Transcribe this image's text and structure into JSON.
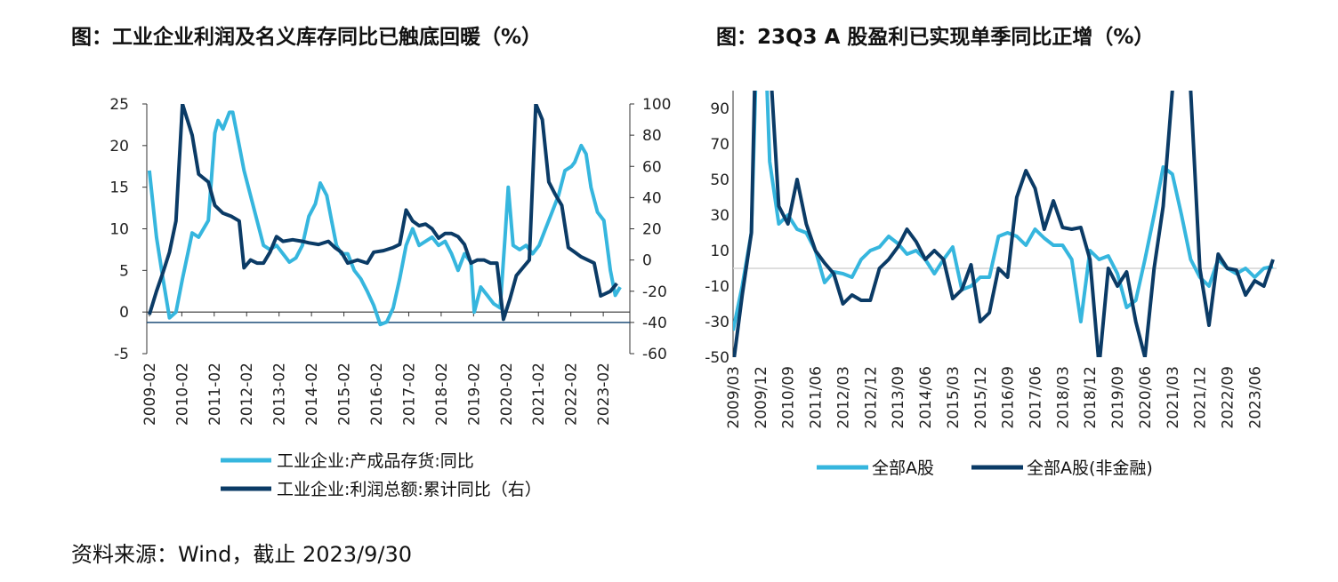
{
  "titles": {
    "left": "图：工业企业利润及名义库存同比已触底回暖（%）",
    "right": "图：23Q3 A 股盈利已实现单季同比正增（%）"
  },
  "source": "资料来源：Wind，截止 2023/9/30",
  "colors": {
    "light": "#36b6de",
    "dark": "#0b3b66",
    "zero": "#d4d4d4",
    "axis": "#333333"
  },
  "chart_data": [
    {
      "type": "line",
      "title": "图：工业企业利润及名义库存同比已触底回暖（%）",
      "x_tick_labels": [
        "2009-02",
        "2010-02",
        "2011-02",
        "2012-02",
        "2013-02",
        "2014-02",
        "2015-02",
        "2016-02",
        "2017-02",
        "2018-02",
        "2019-02",
        "2020-02",
        "2021-02",
        "2022-02",
        "2023-02"
      ],
      "y_left_ticks": [
        "25",
        "20",
        "15",
        "10",
        "5",
        "0",
        "-5"
      ],
      "y_right_ticks": [
        "100",
        "80",
        "60",
        "40",
        "20",
        "0",
        "-20",
        "-40",
        "-60"
      ],
      "ylim_left": [
        -5,
        25
      ],
      "ylim_right": [
        -60,
        100
      ],
      "series": [
        {
          "name": "工业企业:产成品存货:同比",
          "axis": "left",
          "points": [
            [
              2009.08,
              17
            ],
            [
              2009.3,
              9
            ],
            [
              2009.5,
              4
            ],
            [
              2009.7,
              -0.7
            ],
            [
              2009.9,
              0
            ],
            [
              2010.1,
              4
            ],
            [
              2010.4,
              9.5
            ],
            [
              2010.6,
              9
            ],
            [
              2010.9,
              11
            ],
            [
              2011.1,
              21.5
            ],
            [
              2011.2,
              23
            ],
            [
              2011.35,
              22
            ],
            [
              2011.55,
              24
            ],
            [
              2011.65,
              24
            ],
            [
              2011.85,
              20
            ],
            [
              2012.0,
              17
            ],
            [
              2012.2,
              14
            ],
            [
              2012.4,
              11
            ],
            [
              2012.6,
              8
            ],
            [
              2012.8,
              7.5
            ],
            [
              2013.0,
              8
            ],
            [
              2013.2,
              7
            ],
            [
              2013.4,
              6
            ],
            [
              2013.6,
              6.5
            ],
            [
              2013.8,
              8
            ],
            [
              2014.0,
              11.5
            ],
            [
              2014.2,
              13
            ],
            [
              2014.35,
              15.5
            ],
            [
              2014.55,
              14
            ],
            [
              2014.7,
              11
            ],
            [
              2014.85,
              8
            ],
            [
              2015.0,
              7
            ],
            [
              2015.2,
              7
            ],
            [
              2015.4,
              5
            ],
            [
              2015.6,
              4
            ],
            [
              2015.8,
              2.5
            ],
            [
              2016.0,
              0.8
            ],
            [
              2016.2,
              -1.5
            ],
            [
              2016.4,
              -1.2
            ],
            [
              2016.6,
              0.5
            ],
            [
              2016.8,
              4
            ],
            [
              2017.0,
              8
            ],
            [
              2017.2,
              10
            ],
            [
              2017.4,
              8
            ],
            [
              2017.6,
              8.5
            ],
            [
              2017.8,
              9
            ],
            [
              2018.0,
              8
            ],
            [
              2018.2,
              8.5
            ],
            [
              2018.4,
              7
            ],
            [
              2018.6,
              5
            ],
            [
              2018.8,
              7
            ],
            [
              2019.0,
              6
            ],
            [
              2019.1,
              0
            ],
            [
              2019.3,
              3
            ],
            [
              2019.5,
              2
            ],
            [
              2019.7,
              1
            ],
            [
              2019.9,
              0.5
            ],
            [
              2020.05,
              9
            ],
            [
              2020.15,
              15
            ],
            [
              2020.3,
              8
            ],
            [
              2020.5,
              7.5
            ],
            [
              2020.7,
              8
            ],
            [
              2020.9,
              7
            ],
            [
              2021.1,
              8
            ],
            [
              2021.3,
              10
            ],
            [
              2021.5,
              12
            ],
            [
              2021.7,
              14
            ],
            [
              2021.9,
              17
            ],
            [
              2022.1,
              17.5
            ],
            [
              2022.2,
              18
            ],
            [
              2022.4,
              20
            ],
            [
              2022.55,
              19
            ],
            [
              2022.7,
              15
            ],
            [
              2022.9,
              12
            ],
            [
              2023.1,
              11
            ],
            [
              2023.3,
              5
            ],
            [
              2023.45,
              2
            ],
            [
              2023.6,
              3
            ]
          ]
        },
        {
          "name": "工业企业:利润总额:累计同比（右）",
          "axis": "right",
          "points": [
            [
              2009.08,
              -35
            ],
            [
              2009.3,
              -20
            ],
            [
              2009.5,
              -8
            ],
            [
              2009.7,
              5
            ],
            [
              2009.9,
              25
            ],
            [
              2010.1,
              100
            ],
            [
              2010.4,
              80
            ],
            [
              2010.6,
              55
            ],
            [
              2010.9,
              50
            ],
            [
              2011.1,
              35
            ],
            [
              2011.35,
              30
            ],
            [
              2011.6,
              28
            ],
            [
              2011.85,
              25
            ],
            [
              2012.0,
              -5
            ],
            [
              2012.2,
              0
            ],
            [
              2012.4,
              -2
            ],
            [
              2012.6,
              -2
            ],
            [
              2012.8,
              5
            ],
            [
              2013.0,
              15
            ],
            [
              2013.2,
              12
            ],
            [
              2013.5,
              13
            ],
            [
              2013.8,
              12
            ],
            [
              2014.0,
              11
            ],
            [
              2014.3,
              10
            ],
            [
              2014.6,
              12
            ],
            [
              2014.8,
              8
            ],
            [
              2015.0,
              5
            ],
            [
              2015.2,
              -2
            ],
            [
              2015.5,
              0
            ],
            [
              2015.8,
              -2
            ],
            [
              2016.0,
              5
            ],
            [
              2016.3,
              6
            ],
            [
              2016.6,
              8
            ],
            [
              2016.8,
              10
            ],
            [
              2017.0,
              32
            ],
            [
              2017.2,
              25
            ],
            [
              2017.4,
              22
            ],
            [
              2017.6,
              23
            ],
            [
              2017.8,
              20
            ],
            [
              2018.0,
              14
            ],
            [
              2018.2,
              17
            ],
            [
              2018.4,
              17
            ],
            [
              2018.6,
              15
            ],
            [
              2018.8,
              10
            ],
            [
              2019.0,
              -2
            ],
            [
              2019.2,
              0
            ],
            [
              2019.4,
              0
            ],
            [
              2019.6,
              -2
            ],
            [
              2019.8,
              -2
            ],
            [
              2020.0,
              -38
            ],
            [
              2020.2,
              -25
            ],
            [
              2020.4,
              -10
            ],
            [
              2020.6,
              -5
            ],
            [
              2020.8,
              0
            ],
            [
              2021.0,
              100
            ],
            [
              2021.2,
              90
            ],
            [
              2021.4,
              50
            ],
            [
              2021.6,
              42
            ],
            [
              2021.8,
              35
            ],
            [
              2022.0,
              8
            ],
            [
              2022.2,
              5
            ],
            [
              2022.4,
              2
            ],
            [
              2022.6,
              0
            ],
            [
              2022.8,
              -2
            ],
            [
              2023.0,
              -23
            ],
            [
              2023.3,
              -20
            ],
            [
              2023.5,
              -15
            ]
          ]
        }
      ]
    },
    {
      "type": "line",
      "title": "图：23Q3 A 股盈利已实现单季同比正增（%）",
      "x_tick_labels": [
        "2009/03",
        "2009/12",
        "2010/09",
        "2011/06",
        "2012/03",
        "2012/12",
        "2013/09",
        "2014/06",
        "2015/03",
        "2015/12",
        "2016/09",
        "2017/06",
        "2018/03",
        "2018/12",
        "2019/09",
        "2020/06",
        "2021/03",
        "2021/12",
        "2022/09",
        "2023/06"
      ],
      "y_ticks": [
        "90",
        "70",
        "50",
        "30",
        "10",
        "-10",
        "-30",
        "-50"
      ],
      "ylim": [
        -50,
        100
      ],
      "series": [
        {
          "name": "全部A股",
          "values": [
            -35,
            -10,
            20,
            200,
            60,
            25,
            30,
            22,
            20,
            10,
            -8,
            -2,
            -3,
            -5,
            5,
            10,
            12,
            18,
            14,
            8,
            10,
            5,
            -3,
            5,
            12,
            -12,
            -10,
            -5,
            -5,
            18,
            20,
            18,
            13,
            22,
            17,
            13,
            13,
            5,
            -30,
            10,
            5,
            7,
            -3,
            -22,
            -18,
            5,
            30,
            57,
            53,
            30,
            5,
            -5,
            -10,
            5,
            0,
            -3,
            0,
            -5,
            0,
            1
          ]
        },
        {
          "name": "全部A股(非金融)",
          "values": [
            -55,
            -15,
            20,
            250,
            120,
            35,
            25,
            50,
            25,
            10,
            3,
            -3,
            -20,
            -15,
            -18,
            -18,
            0,
            5,
            12,
            22,
            15,
            5,
            10,
            5,
            -17,
            -12,
            2,
            -30,
            -25,
            0,
            -5,
            40,
            55,
            45,
            22,
            38,
            23,
            22,
            23,
            5,
            -55,
            0,
            -10,
            -2,
            -30,
            -50,
            0,
            35,
            100,
            250,
            100,
            0,
            -32,
            8,
            0,
            -1,
            -15,
            -7,
            -10,
            5
          ]
        }
      ]
    }
  ]
}
